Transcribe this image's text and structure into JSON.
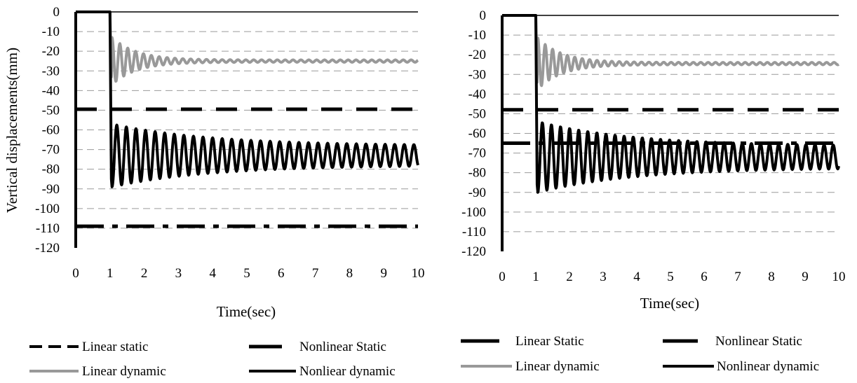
{
  "chart_data": [
    {
      "type": "line",
      "title": "",
      "xlabel": "Time(sec)",
      "ylabel": "Vertical  displacements(mm)",
      "xlim": [
        0,
        10
      ],
      "ylim": [
        -120,
        0
      ],
      "xticks": [
        "0",
        "1",
        "2",
        "3",
        "4",
        "5",
        "6",
        "7",
        "8",
        "9",
        "10"
      ],
      "yticks": [
        "0",
        "-10",
        "-20",
        "-30",
        "-40",
        "-50",
        "-60",
        "-70",
        "-80",
        "-90",
        "-100",
        "-110",
        "-120"
      ],
      "grid": "horizontal dashed",
      "legend_position": "bottom",
      "series": [
        {
          "name": "Linear static",
          "style": "long-dash",
          "color": "#000000",
          "x": [
            0,
            10
          ],
          "y": [
            -49.5,
            -49.5
          ]
        },
        {
          "name": "Nonlinear Static",
          "style": "dash-dot",
          "color": "#000000",
          "x": [
            0,
            10
          ],
          "y": [
            -109,
            -109
          ]
        },
        {
          "name": "Linear dynamic",
          "style": "solid",
          "color": "#999999",
          "start": 1,
          "onset_y": -33,
          "mean": -25,
          "amp0": 12,
          "amp_final": 0.6,
          "period": 0.23,
          "phase": 0,
          "decay": 1.4,
          "x_range": [
            0,
            10
          ],
          "y_range": [
            -35,
            -8
          ]
        },
        {
          "name": "Nonlear dynamic",
          "style": "solid",
          "color": "#000000",
          "start": 1,
          "onset_y": -85,
          "mean": -73,
          "amp0": 16,
          "amp_final": 5,
          "period": 0.28,
          "phase": 3.14159,
          "decay": 0.35,
          "x_range": [
            0,
            10
          ],
          "y_range": [
            -92,
            -56
          ]
        }
      ],
      "legend": {
        "row1": [
          "Linear static",
          "Nonlinear Static"
        ],
        "row2": [
          "Linear dynamic",
          "Nonliear dynamic"
        ]
      }
    },
    {
      "type": "line",
      "title": "",
      "xlabel": "Time(sec)",
      "ylabel": "",
      "xlim": [
        0,
        10
      ],
      "ylim": [
        -120,
        0
      ],
      "xticks": [
        "0",
        "1",
        "2",
        "3",
        "4",
        "5",
        "6",
        "7",
        "8",
        "9",
        "10"
      ],
      "yticks": [
        "0",
        "-10",
        "-20",
        "-30",
        "-40",
        "-50",
        "-60",
        "-70",
        "-80",
        "-90",
        "-100",
        "-110",
        "-120"
      ],
      "grid": "horizontal dashed",
      "legend_position": "bottom",
      "series": [
        {
          "name": "Linear Static",
          "style": "long-dash",
          "color": "#000000",
          "x": [
            0,
            10
          ],
          "y": [
            -48,
            -48
          ]
        },
        {
          "name": "Nonlinear Static",
          "style": "dash-dot",
          "color": "#000000",
          "x": [
            0,
            10
          ],
          "y": [
            -65,
            -65
          ]
        },
        {
          "name": "Linear dynamic",
          "style": "solid",
          "color": "#999999",
          "start": 1,
          "onset_y": -34,
          "mean": -24.5,
          "amp0": 13,
          "amp_final": 0.6,
          "period": 0.22,
          "phase": 0,
          "decay": 1.4,
          "x_range": [
            0,
            10
          ],
          "y_range": [
            -35,
            -7
          ]
        },
        {
          "name": "Nonlinear dynamic",
          "style": "solid",
          "color": "#000000",
          "start": 1,
          "onset_y": -86,
          "mean": -72,
          "amp0": 18,
          "amp_final": 5.5,
          "period": 0.27,
          "phase": 3.14159,
          "decay": 0.35,
          "x_range": [
            0,
            10
          ],
          "y_range": [
            -91,
            -54
          ]
        }
      ],
      "legend": {
        "row1": [
          "Linear Static",
          "Nonlinear Static"
        ],
        "row2": [
          "Linear dynamic",
          "Nonlinear dynamic"
        ]
      }
    }
  ]
}
